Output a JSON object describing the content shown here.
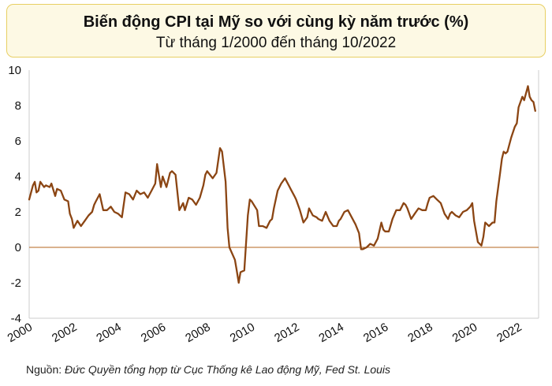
{
  "source_label": "Nguồn:",
  "source_text": "Đức Quyền tổng hợp từ Cục Thống kê Lao động Mỹ, Fed St. Louis",
  "colors": {
    "line": "#8b4513",
    "zero_line": "#b5651d",
    "frame": "#e8cf63",
    "background": "#fdf9e4"
  },
  "chart_data": {
    "type": "line",
    "title": "Biến động CPI tại Mỹ so với cùng kỳ năm trước (%)",
    "subtitle": "Từ tháng 1/2000 đến tháng 10/2022",
    "xlabel": "",
    "ylabel": "",
    "xlim": [
      2000,
      2022.9
    ],
    "ylim": [
      -4,
      10
    ],
    "y_ticks": [
      "-4",
      "-2",
      "0",
      "2",
      "4",
      "6",
      "8",
      "10"
    ],
    "x_ticks": [
      "2000",
      "2002",
      "2004",
      "2006",
      "2008",
      "2010",
      "2012",
      "2014",
      "2016",
      "2018",
      "2020",
      "2022"
    ],
    "grid": false,
    "reference_line_y": 0,
    "series": [
      {
        "x": [
          2000.0,
          2000.17,
          2000.25,
          2000.33,
          2000.42,
          2000.5,
          2000.67,
          2000.75,
          2000.92,
          2001.0,
          2001.17,
          2001.25,
          2001.42,
          2001.58,
          2001.75,
          2001.83,
          2001.92,
          2002.0,
          2002.17,
          2002.33,
          2002.5,
          2002.67,
          2002.83,
          2002.92,
          2003.0,
          2003.17,
          2003.33,
          2003.5,
          2003.67,
          2003.83,
          2004.0,
          2004.17,
          2004.33,
          2004.5,
          2004.67,
          2004.83,
          2005.0,
          2005.17,
          2005.33,
          2005.5,
          2005.67,
          2005.75,
          2005.92,
          2006.0,
          2006.17,
          2006.33,
          2006.42,
          2006.58,
          2006.75,
          2006.92,
          2007.0,
          2007.17,
          2007.33,
          2007.5,
          2007.67,
          2007.83,
          2007.92,
          2008.0,
          2008.25,
          2008.42,
          2008.58,
          2008.67,
          2008.83,
          2008.92,
          2009.0,
          2009.25,
          2009.33,
          2009.42,
          2009.5,
          2009.67,
          2009.83,
          2009.92,
          2010.0,
          2010.25,
          2010.33,
          2010.5,
          2010.67,
          2010.83,
          2010.92,
          2011.0,
          2011.17,
          2011.33,
          2011.5,
          2011.67,
          2011.75,
          2011.92,
          2012.0,
          2012.17,
          2012.33,
          2012.5,
          2012.58,
          2012.75,
          2012.92,
          2013.0,
          2013.17,
          2013.33,
          2013.5,
          2013.67,
          2013.83,
          2013.92,
          2014.0,
          2014.17,
          2014.33,
          2014.5,
          2014.67,
          2014.83,
          2014.92,
          2015.0,
          2015.17,
          2015.33,
          2015.5,
          2015.67,
          2015.83,
          2015.92,
          2016.0,
          2016.17,
          2016.33,
          2016.5,
          2016.67,
          2016.83,
          2016.92,
          2017.0,
          2017.17,
          2017.33,
          2017.5,
          2017.67,
          2017.83,
          2017.92,
          2018.0,
          2018.17,
          2018.33,
          2018.5,
          2018.67,
          2018.83,
          2018.92,
          2019.0,
          2019.17,
          2019.33,
          2019.5,
          2019.67,
          2019.83,
          2019.92,
          2020.0,
          2020.17,
          2020.33,
          2020.42,
          2020.5,
          2020.67,
          2020.83,
          2020.92,
          2021.0,
          2021.17,
          2021.25,
          2021.33,
          2021.42,
          2021.5,
          2021.67,
          2021.83,
          2021.92,
          2022.0,
          2022.17,
          2022.25,
          2022.42,
          2022.5,
          2022.58,
          2022.67,
          2022.75
        ],
        "values": [
          2.7,
          3.5,
          3.7,
          3.1,
          3.2,
          3.7,
          3.4,
          3.5,
          3.4,
          3.6,
          2.9,
          3.3,
          3.2,
          2.7,
          2.6,
          1.9,
          1.6,
          1.1,
          1.5,
          1.2,
          1.5,
          1.8,
          2.0,
          2.4,
          2.6,
          3.0,
          2.1,
          2.1,
          2.3,
          2.0,
          1.9,
          1.7,
          3.1,
          3.0,
          2.7,
          3.2,
          3.0,
          3.1,
          2.8,
          3.2,
          3.6,
          4.7,
          3.4,
          4.0,
          3.4,
          4.2,
          4.3,
          4.1,
          2.1,
          2.5,
          2.1,
          2.8,
          2.7,
          2.4,
          2.8,
          3.5,
          4.1,
          4.3,
          3.9,
          4.2,
          5.6,
          5.4,
          3.7,
          1.1,
          0.0,
          -0.7,
          -1.3,
          -2.0,
          -1.4,
          -1.3,
          1.8,
          2.7,
          2.6,
          2.1,
          1.2,
          1.2,
          1.1,
          1.5,
          1.6,
          2.2,
          3.2,
          3.6,
          3.9,
          3.5,
          3.3,
          2.9,
          2.7,
          2.1,
          1.4,
          1.7,
          2.2,
          1.8,
          1.7,
          1.6,
          1.5,
          2.0,
          1.5,
          1.2,
          1.2,
          1.5,
          1.6,
          2.0,
          2.1,
          1.7,
          1.3,
          0.8,
          -0.1,
          -0.1,
          0.0,
          0.2,
          0.1,
          0.5,
          1.4,
          1.0,
          0.9,
          0.9,
          1.6,
          2.1,
          2.1,
          2.5,
          2.4,
          2.2,
          1.6,
          1.9,
          2.2,
          2.1,
          2.1,
          2.5,
          2.8,
          2.9,
          2.7,
          2.5,
          1.9,
          1.6,
          1.9,
          2.0,
          1.8,
          1.7,
          2.0,
          2.1,
          2.3,
          2.5,
          1.5,
          0.3,
          0.1,
          0.6,
          1.4,
          1.2,
          1.4,
          1.4,
          2.6,
          4.2,
          5.0,
          5.4,
          5.3,
          5.4,
          6.2,
          6.8,
          7.0,
          7.9,
          8.5,
          8.3,
          9.1,
          8.5,
          8.3,
          8.2,
          7.7
        ]
      }
    ]
  }
}
